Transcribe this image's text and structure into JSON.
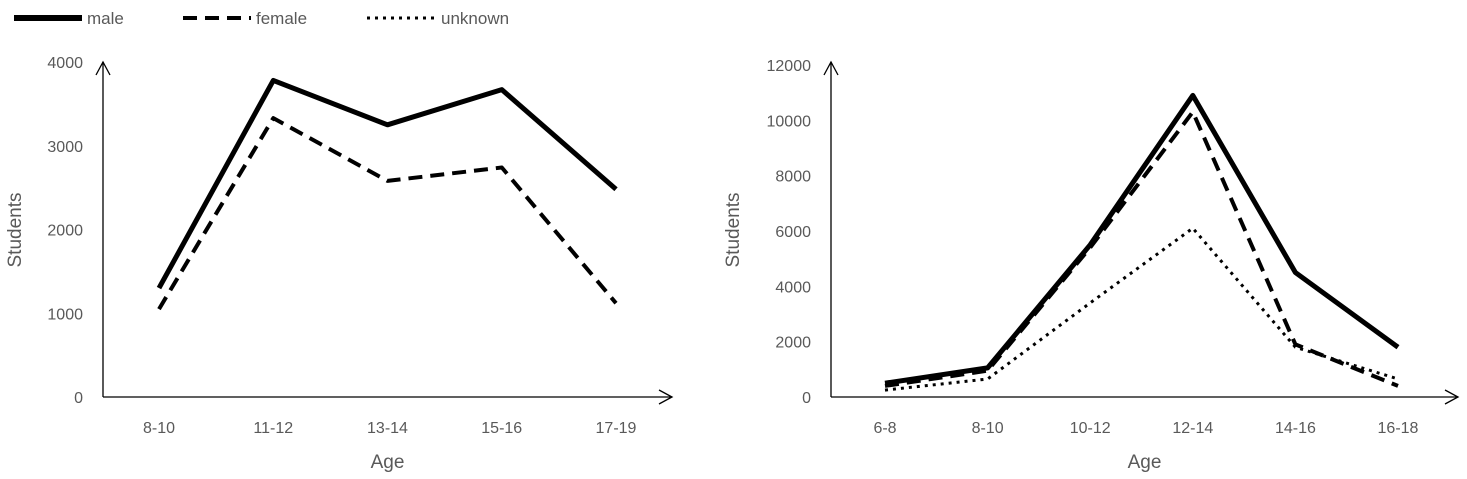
{
  "legend": [
    {
      "name": "male",
      "style": "solid"
    },
    {
      "name": "female",
      "style": "dashed"
    },
    {
      "name": "unknown",
      "style": "dotted"
    }
  ],
  "colors": {
    "line": "#000000",
    "text": "#595959",
    "axis": "#000000"
  },
  "chart_data": [
    {
      "type": "line",
      "xlabel": "Age",
      "ylabel": "Students",
      "categories": [
        "8-10",
        "11-12",
        "13-14",
        "15-16",
        "17-19"
      ],
      "ylim": [
        0,
        4000
      ],
      "yticks": [
        0,
        1000,
        2000,
        3000,
        4000
      ],
      "grid": false,
      "series": [
        {
          "name": "male",
          "values": [
            1300,
            3780,
            3250,
            3670,
            2480
          ]
        },
        {
          "name": "female",
          "values": [
            1050,
            3330,
            2580,
            2740,
            1120
          ]
        }
      ]
    },
    {
      "type": "line",
      "xlabel": "Age",
      "ylabel": "Students",
      "categories": [
        "6-8",
        "8-10",
        "10-12",
        "12-14",
        "14-16",
        "16-18"
      ],
      "ylim": [
        0,
        12000
      ],
      "yticks": [
        0,
        2000,
        4000,
        6000,
        8000,
        10000,
        12000
      ],
      "grid": false,
      "series": [
        {
          "name": "male",
          "values": [
            500,
            1050,
            5500,
            10900,
            4500,
            1800
          ]
        },
        {
          "name": "female",
          "values": [
            400,
            950,
            5400,
            10300,
            1900,
            400
          ]
        },
        {
          "name": "unknown",
          "values": [
            250,
            650,
            3400,
            6100,
            1800,
            650
          ]
        }
      ]
    }
  ]
}
